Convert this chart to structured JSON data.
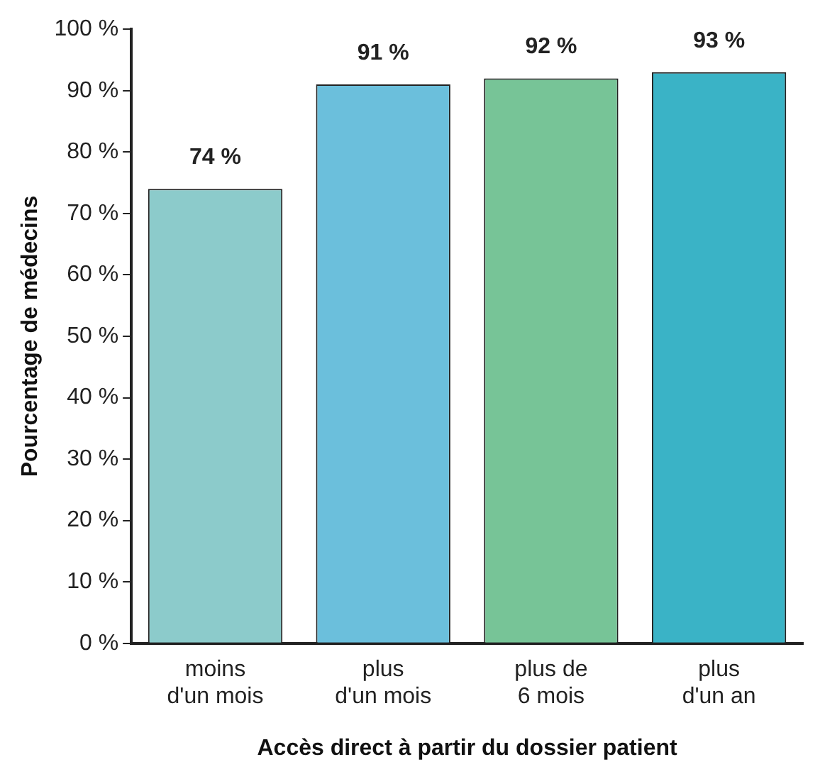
{
  "chart_data": {
    "type": "bar",
    "xlabel": "Accès direct à partir du dossier patient",
    "ylabel": "Pourcentage de médecins",
    "categories": [
      "moins\nd'un mois",
      "plus\nd'un mois",
      "plus de\n6 mois",
      "plus\nd'un an"
    ],
    "values": [
      74,
      91,
      92,
      93
    ],
    "colors": [
      "#8ccbcb",
      "#6bbfdc",
      "#77c497",
      "#3ab3c6"
    ],
    "value_labels": [
      "74 %",
      "91 %",
      "92 %",
      "93 %"
    ],
    "ylim": [
      0,
      100
    ],
    "yticks": [
      {
        "value": 0,
        "label": "0 %"
      },
      {
        "value": 10,
        "label": "10 %"
      },
      {
        "value": 20,
        "label": "20 %"
      },
      {
        "value": 30,
        "label": "30 %"
      },
      {
        "value": 40,
        "label": "40 %"
      },
      {
        "value": 50,
        "label": "50 %"
      },
      {
        "value": 60,
        "label": "60 %"
      },
      {
        "value": 70,
        "label": "70 %"
      },
      {
        "value": 80,
        "label": "80 %"
      },
      {
        "value": 90,
        "label": "90 %"
      },
      {
        "value": 100,
        "label": "100 %"
      }
    ],
    "grid": false,
    "legend": false
  }
}
